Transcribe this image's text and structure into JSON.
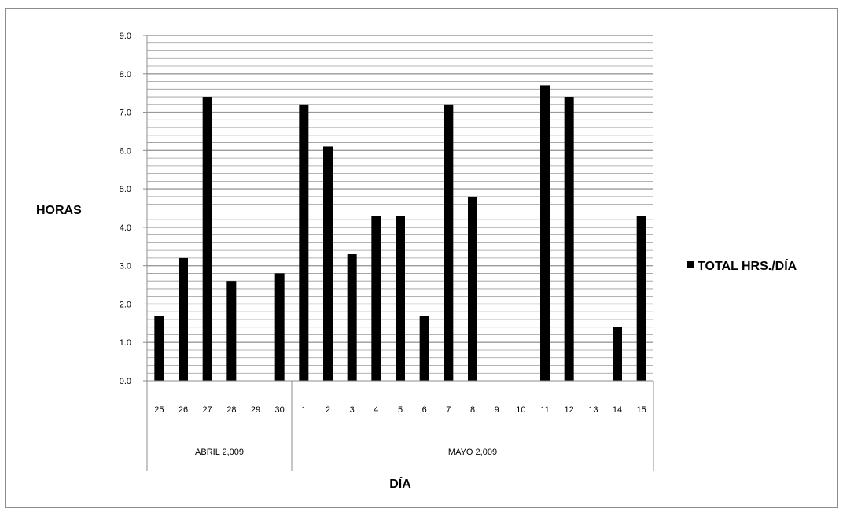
{
  "chart_data": {
    "type": "bar",
    "title": "",
    "xlabel": "DÍA",
    "ylabel": "HORAS",
    "ylim": [
      0,
      9
    ],
    "y_ticks": [
      "0.0",
      "1.0",
      "2.0",
      "3.0",
      "4.0",
      "5.0",
      "6.0",
      "7.0",
      "8.0",
      "9.0"
    ],
    "minor_gridline_step": 0.2,
    "grid": true,
    "legend_position": "right",
    "colors": {
      "bar": "#000000",
      "grid": "#9a9a9a",
      "axis": "#8c8c8c"
    },
    "categories": [
      "25",
      "26",
      "27",
      "28",
      "29",
      "30",
      "1",
      "2",
      "3",
      "4",
      "5",
      "6",
      "7",
      "8",
      "9",
      "10",
      "11",
      "12",
      "13",
      "14",
      "15"
    ],
    "groups": [
      {
        "label": "ABRIL 2,009",
        "count": 6
      },
      {
        "label": "MAYO 2,009",
        "count": 15
      }
    ],
    "series": [
      {
        "name": "TOTAL HRS./DÍA",
        "values": [
          1.7,
          3.2,
          7.4,
          2.6,
          0,
          2.8,
          7.2,
          6.1,
          3.3,
          4.3,
          4.3,
          1.7,
          7.2,
          4.8,
          0,
          0,
          7.7,
          7.4,
          0,
          1.4,
          4.3
        ]
      }
    ]
  }
}
